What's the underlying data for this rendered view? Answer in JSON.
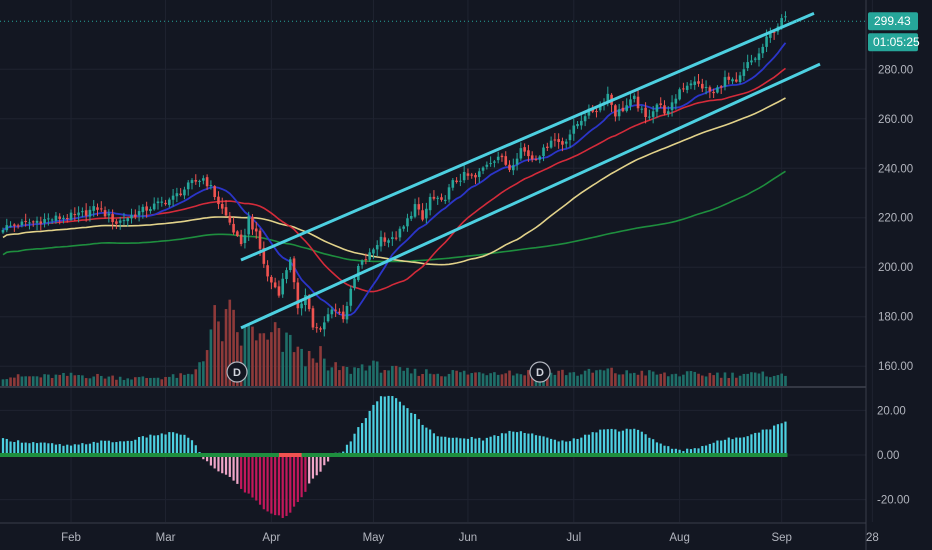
{
  "chart_data": [
    {
      "type": "candlestick",
      "title": "",
      "x_labels": [
        "Feb",
        "Mar",
        "Apr",
        "May",
        "Jun",
        "Jul",
        "Aug",
        "Sep",
        "28"
      ],
      "y_ticks": [
        160,
        180,
        200,
        220,
        240,
        260,
        280
      ],
      "ylim": [
        152,
        308
      ],
      "last_price": "299.43",
      "countdown": "01:05:25",
      "dividend_label": "D",
      "colors": {
        "up": "#26a69a",
        "down": "#ef5350",
        "channel": "#4dd0e1",
        "ma_fast": "#2b35c9",
        "ma_mid": "#d42b3a",
        "ma_slow": "#e2d28a",
        "ma_long": "#1e8e3e",
        "price_badge": "#26a69a"
      },
      "price_anchors": [
        [
          0,
          216
        ],
        [
          10,
          219
        ],
        [
          20,
          221
        ],
        [
          25,
          224
        ],
        [
          30,
          218
        ],
        [
          37,
          223
        ],
        [
          45,
          228
        ],
        [
          50,
          234
        ],
        [
          53,
          236
        ],
        [
          55,
          232
        ],
        [
          57,
          226
        ],
        [
          60,
          218
        ],
        [
          63,
          208
        ],
        [
          65,
          220
        ],
        [
          67,
          213
        ],
        [
          70,
          196
        ],
        [
          73,
          190
        ],
        [
          76,
          204
        ],
        [
          78,
          182
        ],
        [
          80,
          190
        ],
        [
          82,
          176
        ],
        [
          84,
          174
        ],
        [
          87,
          184
        ],
        [
          90,
          180
        ],
        [
          92,
          190
        ],
        [
          94,
          200
        ],
        [
          97,
          205
        ],
        [
          100,
          212
        ],
        [
          103,
          211
        ],
        [
          106,
          216
        ],
        [
          109,
          225
        ],
        [
          111,
          219
        ],
        [
          113,
          228
        ],
        [
          116,
          226
        ],
        [
          119,
          234
        ],
        [
          122,
          237
        ],
        [
          125,
          236
        ],
        [
          128,
          242
        ],
        [
          131,
          245
        ],
        [
          134,
          240
        ],
        [
          137,
          248
        ],
        [
          140,
          244
        ],
        [
          143,
          247
        ],
        [
          145,
          252
        ],
        [
          148,
          250
        ],
        [
          151,
          256
        ],
        [
          154,
          262
        ],
        [
          157,
          264
        ],
        [
          160,
          270
        ],
        [
          162,
          262
        ],
        [
          164,
          264
        ],
        [
          167,
          268
        ],
        [
          170,
          260
        ],
        [
          173,
          266
        ],
        [
          176,
          262
        ],
        [
          179,
          272
        ],
        [
          182,
          275
        ],
        [
          185,
          273
        ],
        [
          188,
          270
        ],
        [
          191,
          276
        ],
        [
          194,
          274
        ],
        [
          197,
          282
        ],
        [
          200,
          286
        ],
        [
          202,
          292
        ],
        [
          205,
          298
        ],
        [
          207,
          301
        ]
      ],
      "volume_scale": [
        0,
        60
      ],
      "volume_anchors": [
        [
          0,
          6
        ],
        [
          10,
          6
        ],
        [
          20,
          7
        ],
        [
          35,
          5
        ],
        [
          45,
          6
        ],
        [
          50,
          7
        ],
        [
          52,
          16
        ],
        [
          54,
          25
        ],
        [
          56,
          42
        ],
        [
          58,
          35
        ],
        [
          60,
          45
        ],
        [
          63,
          30
        ],
        [
          66,
          38
        ],
        [
          68,
          30
        ],
        [
          70,
          28
        ],
        [
          72,
          35
        ],
        [
          74,
          25
        ],
        [
          76,
          30
        ],
        [
          78,
          24
        ],
        [
          80,
          15
        ],
        [
          82,
          22
        ],
        [
          84,
          20
        ],
        [
          86,
          10
        ],
        [
          88,
          12
        ],
        [
          92,
          10
        ],
        [
          96,
          14
        ],
        [
          100,
          12
        ],
        [
          104,
          10
        ],
        [
          108,
          9
        ],
        [
          112,
          9
        ],
        [
          116,
          8
        ],
        [
          120,
          9
        ],
        [
          124,
          8
        ],
        [
          128,
          9
        ],
        [
          132,
          10
        ],
        [
          136,
          8
        ],
        [
          140,
          9
        ],
        [
          144,
          8
        ],
        [
          148,
          9
        ],
        [
          152,
          8
        ],
        [
          156,
          9
        ],
        [
          160,
          10
        ],
        [
          164,
          8
        ],
        [
          168,
          9
        ],
        [
          172,
          8
        ],
        [
          176,
          7
        ],
        [
          180,
          8
        ],
        [
          184,
          7
        ],
        [
          188,
          8
        ],
        [
          192,
          7
        ],
        [
          196,
          8
        ],
        [
          200,
          7
        ],
        [
          204,
          8
        ],
        [
          207,
          6
        ]
      ]
    },
    {
      "type": "histogram",
      "y_ticks": [
        -20,
        0,
        20
      ],
      "ylim": [
        -30,
        30
      ],
      "oscillator_anchors": [
        [
          0,
          7
        ],
        [
          5,
          6
        ],
        [
          12,
          5
        ],
        [
          18,
          4
        ],
        [
          25,
          6
        ],
        [
          32,
          6
        ],
        [
          40,
          9
        ],
        [
          46,
          10
        ],
        [
          50,
          7
        ],
        [
          53,
          -2
        ],
        [
          56,
          -6
        ],
        [
          60,
          -10
        ],
        [
          63,
          -15
        ],
        [
          66,
          -19
        ],
        [
          69,
          -24
        ],
        [
          72,
          -27
        ],
        [
          74,
          -28
        ],
        [
          76,
          -26
        ],
        [
          78,
          -21
        ],
        [
          80,
          -16
        ],
        [
          82,
          -10
        ],
        [
          84,
          -7
        ],
        [
          86,
          -3
        ],
        [
          88,
          0.5
        ],
        [
          90,
          2
        ],
        [
          92,
          6
        ],
        [
          94,
          12
        ],
        [
          96,
          17
        ],
        [
          98,
          22
        ],
        [
          100,
          26
        ],
        [
          102,
          27
        ],
        [
          104,
          25
        ],
        [
          106,
          22
        ],
        [
          109,
          18
        ],
        [
          112,
          12
        ],
        [
          115,
          9
        ],
        [
          118,
          8
        ],
        [
          121,
          7
        ],
        [
          124,
          8
        ],
        [
          127,
          7
        ],
        [
          131,
          9
        ],
        [
          135,
          11
        ],
        [
          139,
          10
        ],
        [
          143,
          8
        ],
        [
          147,
          6
        ],
        [
          151,
          7
        ],
        [
          155,
          9
        ],
        [
          159,
          12
        ],
        [
          163,
          11
        ],
        [
          167,
          12
        ],
        [
          171,
          8
        ],
        [
          175,
          4
        ],
        [
          179,
          2
        ],
        [
          183,
          3
        ],
        [
          187,
          5
        ],
        [
          191,
          7
        ],
        [
          195,
          8
        ],
        [
          199,
          10
        ],
        [
          203,
          12
        ],
        [
          207,
          15
        ]
      ]
    }
  ]
}
